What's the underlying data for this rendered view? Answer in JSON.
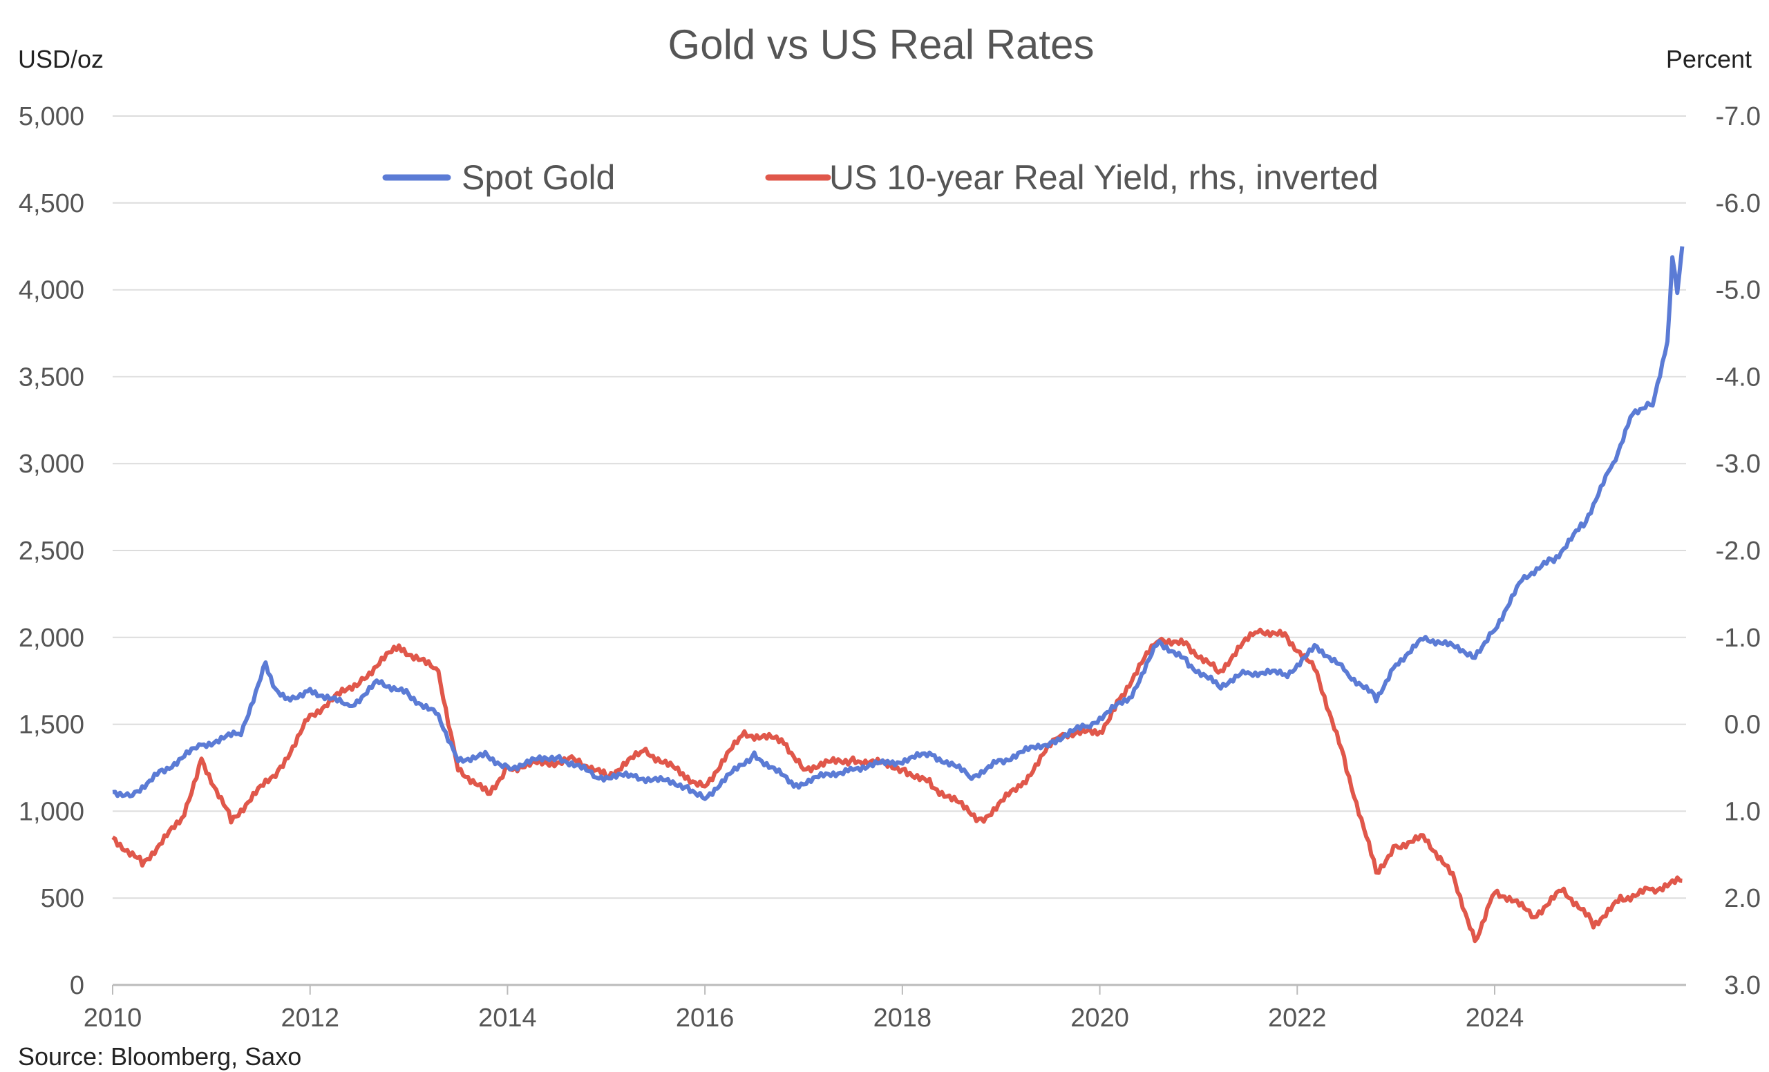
{
  "chart_data": {
    "type": "line",
    "title": "Gold vs US Real Rates",
    "ylabel_left": "USD/oz",
    "ylabel_right": "Percent",
    "source": "Source: Bloomberg, Saxo",
    "xlim": [
      2010,
      2026
    ],
    "ylim_left": [
      0,
      5000
    ],
    "ylim_right": [
      3.0,
      -7.0
    ],
    "grid": true,
    "legend_position": "top-center",
    "x_ticks": [
      "2010",
      "2012",
      "2014",
      "2016",
      "2018",
      "2020",
      "2022",
      "2024"
    ],
    "y_left_ticks": [
      "0",
      "500",
      "1,000",
      "1,500",
      "2,000",
      "2,500",
      "3,000",
      "3,500",
      "4,000",
      "4,500",
      "5,000"
    ],
    "y_right_ticks": [
      "3.0",
      "2.0",
      "1.0",
      "0.0",
      "-1.0",
      "-2.0",
      "-3.0",
      "-4.0",
      "-5.0",
      "-6.0",
      "-7.0"
    ],
    "series": [
      {
        "name": "Spot Gold",
        "axis": "left",
        "color": "#5b7bd5",
        "x": [
          2010.0,
          2010.2,
          2010.5,
          2010.9,
          2011.3,
          2011.55,
          2011.65,
          2011.8,
          2012.0,
          2012.4,
          2012.7,
          2013.0,
          2013.3,
          2013.5,
          2013.8,
          2014.0,
          2014.5,
          2014.9,
          2015.3,
          2015.8,
          2016.0,
          2016.5,
          2016.9,
          2017.5,
          2017.9,
          2018.3,
          2018.7,
          2019.0,
          2019.5,
          2019.9,
          2020.3,
          2020.6,
          2020.9,
          2021.2,
          2021.5,
          2021.9,
          2022.2,
          2022.5,
          2022.8,
          2023.0,
          2023.3,
          2023.8,
          2024.0,
          2024.3,
          2024.6,
          2024.9,
          2025.2,
          2025.4,
          2025.6,
          2025.75,
          2025.8,
          2025.85,
          2025.9
        ],
        "values": [
          1110,
          1100,
          1230,
          1380,
          1450,
          1850,
          1700,
          1650,
          1700,
          1600,
          1750,
          1670,
          1550,
          1300,
          1320,
          1250,
          1320,
          1200,
          1200,
          1150,
          1080,
          1330,
          1150,
          1250,
          1280,
          1330,
          1200,
          1290,
          1400,
          1500,
          1650,
          1980,
          1850,
          1720,
          1800,
          1790,
          1950,
          1800,
          1650,
          1850,
          2000,
          1900,
          2050,
          2350,
          2450,
          2650,
          3000,
          3300,
          3350,
          3700,
          4200,
          4000,
          4250
        ]
      },
      {
        "name": "US 10-year Real Yield, rhs, inverted",
        "axis": "right",
        "color": "#e0574a",
        "x": [
          2010.0,
          2010.3,
          2010.7,
          2010.9,
          2011.2,
          2011.7,
          2012.0,
          2012.5,
          2012.9,
          2013.3,
          2013.5,
          2013.8,
          2014.0,
          2014.7,
          2015.0,
          2015.4,
          2015.8,
          2016.0,
          2016.4,
          2016.8,
          2017.0,
          2017.5,
          2018.0,
          2018.3,
          2018.8,
          2019.2,
          2019.6,
          2020.0,
          2020.2,
          2020.6,
          2020.9,
          2021.2,
          2021.6,
          2021.9,
          2022.2,
          2022.5,
          2022.8,
          2023.0,
          2023.3,
          2023.6,
          2023.8,
          2024.0,
          2024.4,
          2024.7,
          2025.0,
          2025.3,
          2025.6,
          2025.9
        ],
        "values": [
          1.3,
          1.6,
          1.1,
          0.4,
          1.1,
          0.5,
          -0.1,
          -0.5,
          -0.9,
          -0.6,
          0.5,
          0.8,
          0.5,
          0.4,
          0.6,
          0.3,
          0.6,
          0.7,
          0.1,
          0.2,
          0.5,
          0.4,
          0.5,
          0.7,
          1.1,
          0.7,
          0.1,
          0.1,
          -0.3,
          -1.0,
          -0.9,
          -0.6,
          -1.1,
          -1.0,
          -0.6,
          0.5,
          1.7,
          1.4,
          1.3,
          1.8,
          2.5,
          1.9,
          2.2,
          1.9,
          2.3,
          2.0,
          1.9,
          1.8
        ]
      }
    ]
  }
}
